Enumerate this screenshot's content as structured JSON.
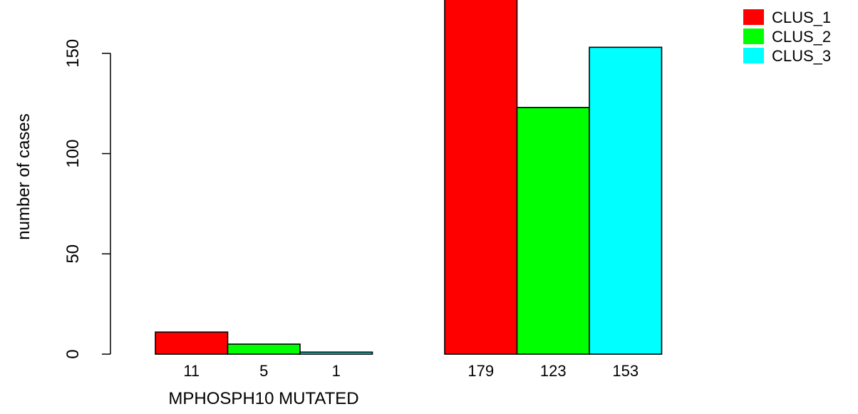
{
  "chart_data": {
    "type": "bar",
    "title": "",
    "xlabel": "MPHOSPH10 MUTATED",
    "ylabel": "number of cases",
    "ylim": [
      0,
      180
    ],
    "yticks": [
      0,
      50,
      100,
      150
    ],
    "grid": false,
    "legend_position": "top-right",
    "groups": [
      {
        "name": "",
        "bars": [
          {
            "series": "CLUS_1",
            "value": 11,
            "label": "11"
          },
          {
            "series": "CLUS_2",
            "value": 5,
            "label": "5"
          },
          {
            "series": "CLUS_3",
            "value": 1,
            "label": "1"
          }
        ]
      },
      {
        "name": "",
        "bars": [
          {
            "series": "CLUS_1",
            "value": 179,
            "label": "179"
          },
          {
            "series": "CLUS_2",
            "value": 123,
            "label": "123"
          },
          {
            "series": "CLUS_3",
            "value": 153,
            "label": "153"
          }
        ]
      }
    ],
    "series": [
      {
        "name": "CLUS_1",
        "color": "#ff0000"
      },
      {
        "name": "CLUS_2",
        "color": "#00ff00"
      },
      {
        "name": "CLUS_3",
        "color": "#00ffff"
      }
    ]
  }
}
